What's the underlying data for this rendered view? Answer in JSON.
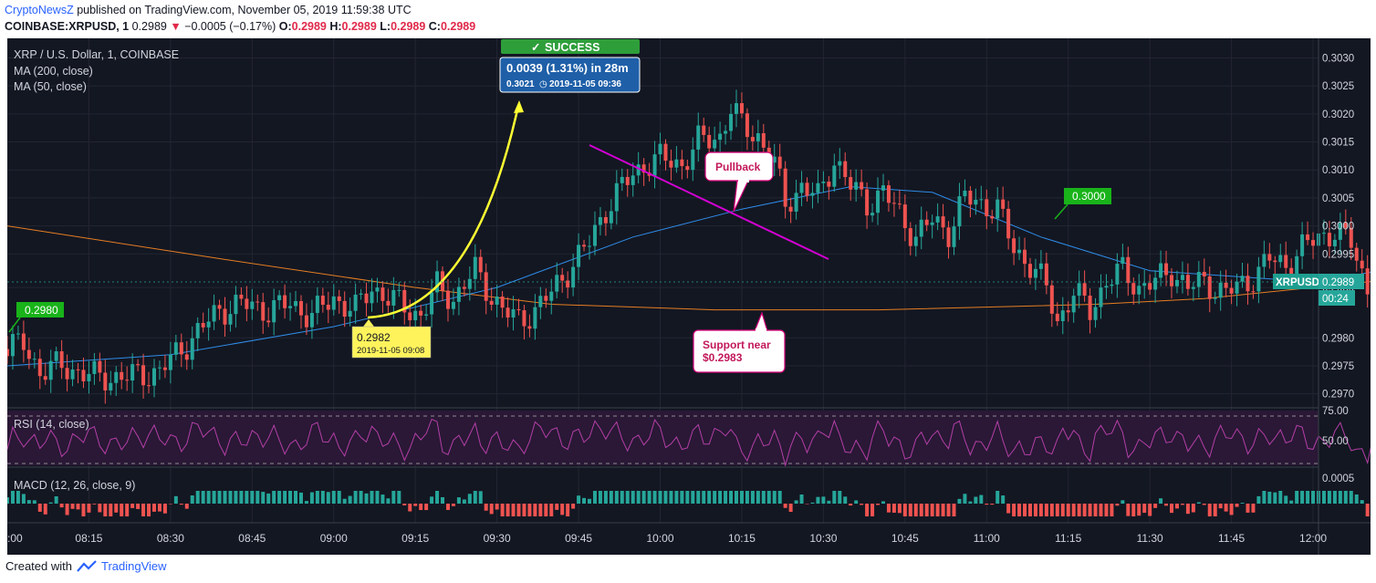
{
  "header": {
    "publisher": "CryptoNewsZ",
    "published_text": "published on TradingView.com, November 05, 2019 11:59:38 UTC",
    "symbol": "COINBASE:XRPUSD, 1",
    "price": "0.2989",
    "change": "−0.0005 (−0.17%)",
    "ohlc_o": "0.2989",
    "ohlc_h": "0.2989",
    "ohlc_l": "0.2989",
    "ohlc_c": "0.2989"
  },
  "legend": {
    "title": "XRP / U.S. Dollar, 1, COINBASE",
    "ma200": "MA (200, close)",
    "ma50": "MA (50, close)"
  },
  "annotations": {
    "success": "SUCCESS",
    "measure_main": "0.0039 (1.31%) in 28m",
    "measure_sub": "0.3021",
    "measure_time": "2019-11-05  09:36",
    "low_price": "0.2982",
    "low_time": "2019-11-05 09:08",
    "pullback": "Pullback",
    "support_l1": "Support near",
    "support_l2": "$0.2983",
    "left_tag": "0.2980",
    "right_tag": "0.3000",
    "price_tag": "XRPUSD",
    "price_tag_value": "0.2989",
    "countdown": "00:24"
  },
  "rsi": {
    "label": "RSI (14, close)",
    "ticks": [
      "75.00",
      "50.00"
    ]
  },
  "macd": {
    "label": "MACD (12, 26, close, 9)",
    "ticks": [
      "0.0005"
    ]
  },
  "footer": {
    "created": "Created with",
    "brand": "TradingView"
  },
  "colors": {
    "up": "#26a69a",
    "down": "#ef5350",
    "ma50": "#2f8ce8",
    "ma200": "#e67e22",
    "rsi": "#b43fa6",
    "trend": "#d400d4",
    "arrow": "#ffff33"
  },
  "chart_data": {
    "type": "candlestick",
    "title": "XRP / U.S. Dollar, 1, COINBASE",
    "x_ticks": [
      ":00",
      "08:15",
      "08:30",
      "08:45",
      "09:00",
      "09:15",
      "09:30",
      "09:45",
      "10:00",
      "10:15",
      "10:30",
      "10:45",
      "11:00",
      "11:15",
      "11:30",
      "11:45",
      "12:00"
    ],
    "y_ticks": [
      "0.3030",
      "0.3025",
      "0.3020",
      "0.3015",
      "0.3010",
      "0.3005",
      "0.3000",
      "0.2995",
      "0.2989",
      "0.2980",
      "0.2975",
      "0.2970"
    ],
    "ylim": [
      0.29675,
      0.30335
    ],
    "xlim_minutes": [
      480,
      721
    ],
    "close_path": [
      [
        480,
        0.2978
      ],
      [
        483,
        0.2979
      ],
      [
        486,
        0.2974
      ],
      [
        490,
        0.2975
      ],
      [
        496,
        0.2973
      ],
      [
        502,
        0.2973
      ],
      [
        508,
        0.2974
      ],
      [
        512,
        0.2978
      ],
      [
        516,
        0.2982
      ],
      [
        519,
        0.2985
      ],
      [
        523,
        0.2986
      ],
      [
        528,
        0.2985
      ],
      [
        532,
        0.2986
      ],
      [
        536,
        0.2984
      ],
      [
        540,
        0.2987
      ],
      [
        544,
        0.2985
      ],
      [
        547,
        0.2989
      ],
      [
        552,
        0.2986
      ],
      [
        556,
        0.2984
      ],
      [
        559,
        0.2989
      ],
      [
        562,
        0.2987
      ],
      [
        566,
        0.2992
      ],
      [
        568,
        0.2989
      ],
      [
        571,
        0.2985
      ],
      [
        574,
        0.2983
      ],
      [
        577,
        0.2985
      ],
      [
        580,
        0.2988
      ],
      [
        583,
        0.2992
      ],
      [
        587,
        0.2997
      ],
      [
        590,
        0.3003
      ],
      [
        593,
        0.3007
      ],
      [
        597,
        0.3011
      ],
      [
        600,
        0.3012
      ],
      [
        604,
        0.3011
      ],
      [
        607,
        0.3015
      ],
      [
        611,
        0.3016
      ],
      [
        613,
        0.3021
      ],
      [
        615,
        0.3018
      ],
      [
        618,
        0.3016
      ],
      [
        621,
        0.3011
      ],
      [
        623,
        0.3004
      ],
      [
        626,
        0.3007
      ],
      [
        629,
        0.3005
      ],
      [
        632,
        0.3012
      ],
      [
        635,
        0.3007
      ],
      [
        638,
        0.3004
      ],
      [
        641,
        0.3006
      ],
      [
        644,
        0.3002
      ],
      [
        647,
        0.2998
      ],
      [
        650,
        0.3001
      ],
      [
        653,
        0.2999
      ],
      [
        656,
        0.3005
      ],
      [
        659,
        0.3004
      ],
      [
        662,
        0.3003
      ],
      [
        665,
        0.2996
      ],
      [
        668,
        0.2993
      ],
      [
        671,
        0.2989
      ],
      [
        673,
        0.2983
      ],
      [
        676,
        0.2988
      ],
      [
        679,
        0.2985
      ],
      [
        682,
        0.299
      ],
      [
        685,
        0.2992
      ],
      [
        688,
        0.2989
      ],
      [
        691,
        0.299
      ],
      [
        694,
        0.2992
      ],
      [
        697,
        0.2989
      ],
      [
        700,
        0.299
      ],
      [
        704,
        0.2988
      ],
      [
        708,
        0.299
      ],
      [
        712,
        0.2994
      ],
      [
        715,
        0.2993
      ],
      [
        718,
        0.2996
      ],
      [
        721,
        0.2998
      ],
      [
        724,
        0.2999
      ],
      [
        727,
        0.2997
      ],
      [
        730,
        0.2989
      ],
      [
        733,
        0.2997
      ],
      [
        736,
        0.2998
      ],
      [
        739,
        0.3001
      ],
      [
        742,
        0.2997
      ],
      [
        745,
        0.2996
      ],
      [
        748,
        0.2996
      ],
      [
        751,
        0.2998
      ],
      [
        754,
        0.2997
      ],
      [
        757,
        0.2996
      ],
      [
        760,
        0.2995
      ],
      [
        763,
        0.2992
      ],
      [
        766,
        0.2989
      ],
      [
        769,
        0.2987
      ],
      [
        772,
        0.2987
      ],
      [
        775,
        0.2985
      ],
      [
        778,
        0.2988
      ],
      [
        781,
        0.2989
      ]
    ],
    "series": [
      {
        "name": "MA (200, close)",
        "color": "#e67e22",
        "values": [
          [
            480,
            0.3
          ],
          [
            520,
            0.2994
          ],
          [
            555,
            0.2989
          ],
          [
            580,
            0.2986
          ],
          [
            610,
            0.2985
          ],
          [
            640,
            0.2985
          ],
          [
            680,
            0.2986
          ],
          [
            700,
            0.2987
          ],
          [
            720,
            0.2989
          ],
          [
            740,
            0.2991
          ],
          [
            765,
            0.2992
          ],
          [
            781,
            0.2993
          ]
        ]
      },
      {
        "name": "MA (50, close)",
        "color": "#2f8ce8",
        "values": [
          [
            480,
            0.2975
          ],
          [
            510,
            0.2977
          ],
          [
            540,
            0.2982
          ],
          [
            570,
            0.2989
          ],
          [
            595,
            0.2998
          ],
          [
            615,
            0.3003
          ],
          [
            635,
            0.3007
          ],
          [
            650,
            0.3006
          ],
          [
            670,
            0.2998
          ],
          [
            690,
            0.2992
          ],
          [
            705,
            0.2991
          ],
          [
            720,
            0.299
          ],
          [
            745,
            0.2994
          ],
          [
            765,
            0.2995
          ],
          [
            781,
            0.2993
          ]
        ]
      }
    ]
  }
}
